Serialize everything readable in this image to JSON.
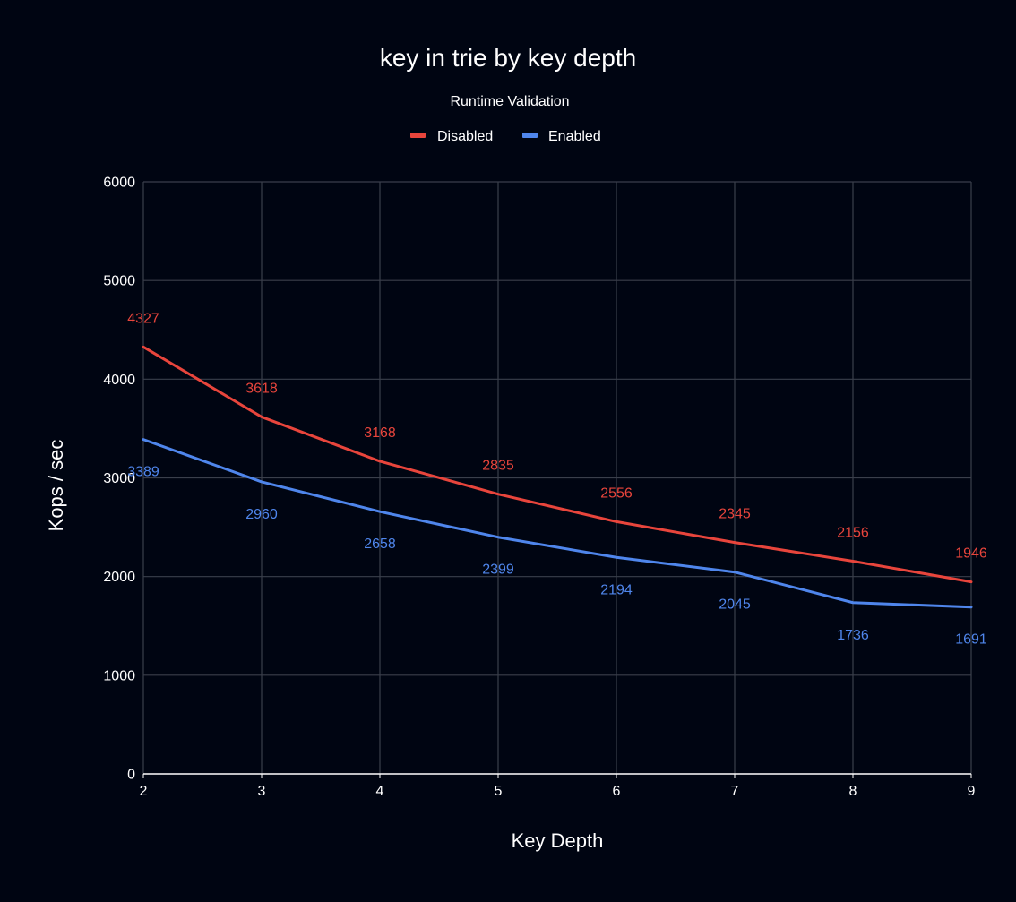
{
  "chart_data": {
    "type": "line",
    "title": "key in trie by key depth",
    "legend_title": "Runtime Validation",
    "legend_position": "top",
    "xlabel": "Key Depth",
    "ylabel": "Kops / sec",
    "x": [
      2,
      3,
      4,
      5,
      6,
      7,
      8,
      9
    ],
    "xlim": [
      2,
      9
    ],
    "ylim": [
      0,
      6000
    ],
    "yticks": [
      0,
      1000,
      2000,
      3000,
      4000,
      5000,
      6000
    ],
    "grid": true,
    "series": [
      {
        "name": "Disabled",
        "color": "#e8453c",
        "values": [
          4327,
          3618,
          3168,
          2835,
          2556,
          2345,
          2156,
          1946
        ]
      },
      {
        "name": "Enabled",
        "color": "#4f86ec",
        "values": [
          3389,
          2960,
          2658,
          2399,
          2194,
          2045,
          1736,
          1691
        ]
      }
    ]
  },
  "colors": {
    "background": "#000512",
    "grid": "#3a3f4b",
    "axis": "#ffffff",
    "text": "#ffffff"
  }
}
